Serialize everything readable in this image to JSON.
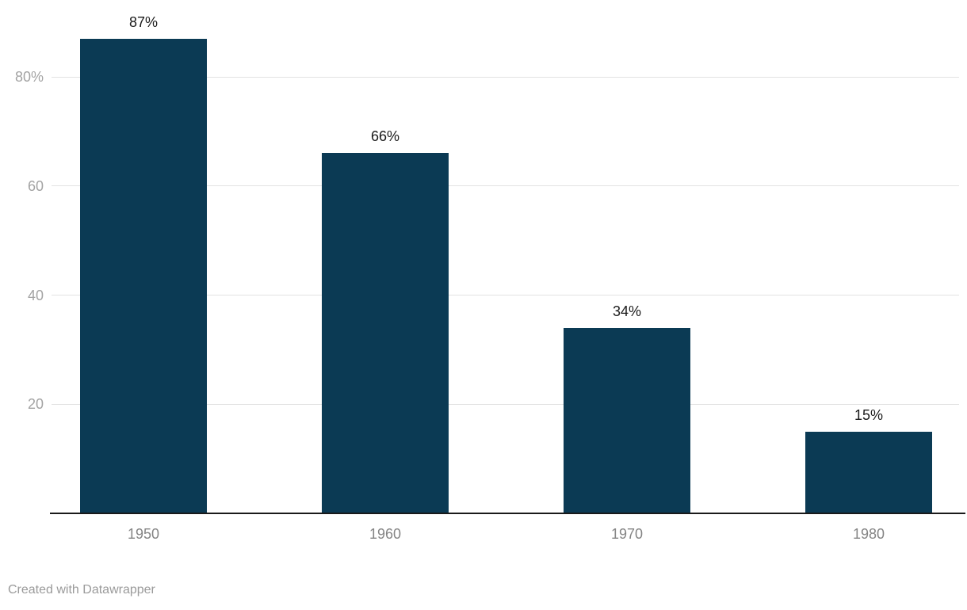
{
  "chart_data": {
    "type": "bar",
    "categories": [
      "1950",
      "1960",
      "1970",
      "1980"
    ],
    "values": [
      87,
      66,
      34,
      15
    ],
    "bar_labels": [
      "87%",
      "66%",
      "34%",
      "15%"
    ],
    "title": "",
    "xlabel": "",
    "ylabel": "",
    "ylim": [
      0,
      87
    ],
    "grid": "horizontal",
    "legend": "none",
    "y_axis": {
      "ticks": [
        {
          "value": 20,
          "label": "20"
        },
        {
          "value": 40,
          "label": "40"
        },
        {
          "value": 60,
          "label": "60"
        },
        {
          "value": 80,
          "label": "80%"
        }
      ]
    },
    "footer": "Created with Datawrapper"
  },
  "colors": {
    "bar": "#0b3a54",
    "gridline": "#e2e2e2",
    "axis_line": "#1a1a1a",
    "y_tick_label": "#a3a3a3",
    "x_category_label": "#848484",
    "bar_value_label": "#1b1b1b",
    "footer_text": "#9a9a9a",
    "background": "#ffffff"
  }
}
